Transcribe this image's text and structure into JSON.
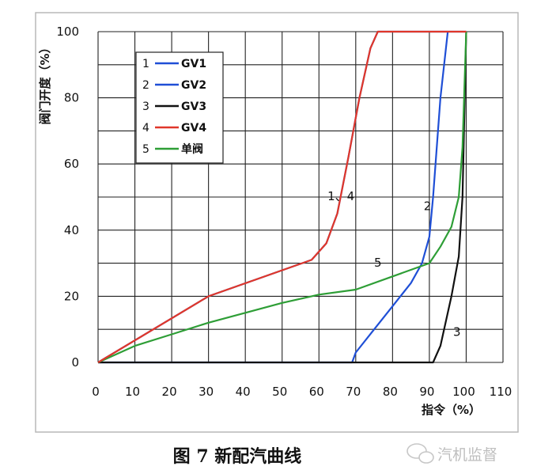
{
  "chart_data": {
    "type": "line",
    "xlabel": "指令（%）",
    "ylabel": "阀门开度（%）",
    "xlim": [
      0,
      110
    ],
    "ylim": [
      0,
      100
    ],
    "x_ticks": [
      "0",
      "10",
      "20",
      "30",
      "40",
      "50",
      "60",
      "70",
      "80",
      "90",
      "100",
      "110"
    ],
    "y_ticks": [
      "0",
      "20",
      "40",
      "60",
      "80",
      "100"
    ],
    "grid": true,
    "legend_position": "top-left",
    "series": [
      {
        "name": "GV1",
        "number": "1",
        "color": "#1f4fd6",
        "x": [
          0,
          30,
          58,
          62,
          65,
          68,
          71,
          74,
          76,
          100
        ],
        "y": [
          0,
          20,
          31,
          36,
          45,
          62,
          80,
          95,
          100,
          100
        ]
      },
      {
        "name": "GV2",
        "number": "2",
        "color": "#1f4fd6",
        "x": [
          0,
          69,
          70,
          75,
          80,
          85,
          88,
          90,
          91,
          93,
          95
        ],
        "y": [
          0,
          0,
          3,
          10,
          17,
          24,
          30,
          38,
          50,
          80,
          100
        ]
      },
      {
        "name": "GV3",
        "number": "3",
        "color": "#111111",
        "x": [
          0,
          91,
          93,
          96,
          98,
          99,
          100
        ],
        "y": [
          0,
          0,
          5,
          20,
          32,
          50,
          100
        ]
      },
      {
        "name": "GV4",
        "number": "4",
        "color": "#e0372a",
        "x": [
          0,
          30,
          58,
          62,
          65,
          68,
          71,
          74,
          76,
          100
        ],
        "y": [
          0,
          20,
          31,
          36,
          45,
          62,
          80,
          95,
          100,
          100
        ]
      },
      {
        "name": "单阀",
        "number": "5",
        "color": "#2e9e36",
        "x": [
          0,
          10,
          20,
          30,
          40,
          50,
          60,
          70,
          80,
          90,
          93,
          96,
          98,
          99,
          100
        ],
        "y": [
          0,
          5,
          8.5,
          12,
          15,
          18,
          20.5,
          22,
          26,
          30,
          35,
          41,
          50,
          65,
          100
        ]
      }
    ],
    "annotations": [
      {
        "text": "1、4",
        "x": 66,
        "y": 49
      },
      {
        "text": "2",
        "x": 89.5,
        "y": 46
      },
      {
        "text": "3",
        "x": 97.5,
        "y": 8
      },
      {
        "text": "5",
        "x": 76,
        "y": 29
      }
    ]
  },
  "caption": "图 7   新配汽曲线",
  "watermark": "汽机监督"
}
